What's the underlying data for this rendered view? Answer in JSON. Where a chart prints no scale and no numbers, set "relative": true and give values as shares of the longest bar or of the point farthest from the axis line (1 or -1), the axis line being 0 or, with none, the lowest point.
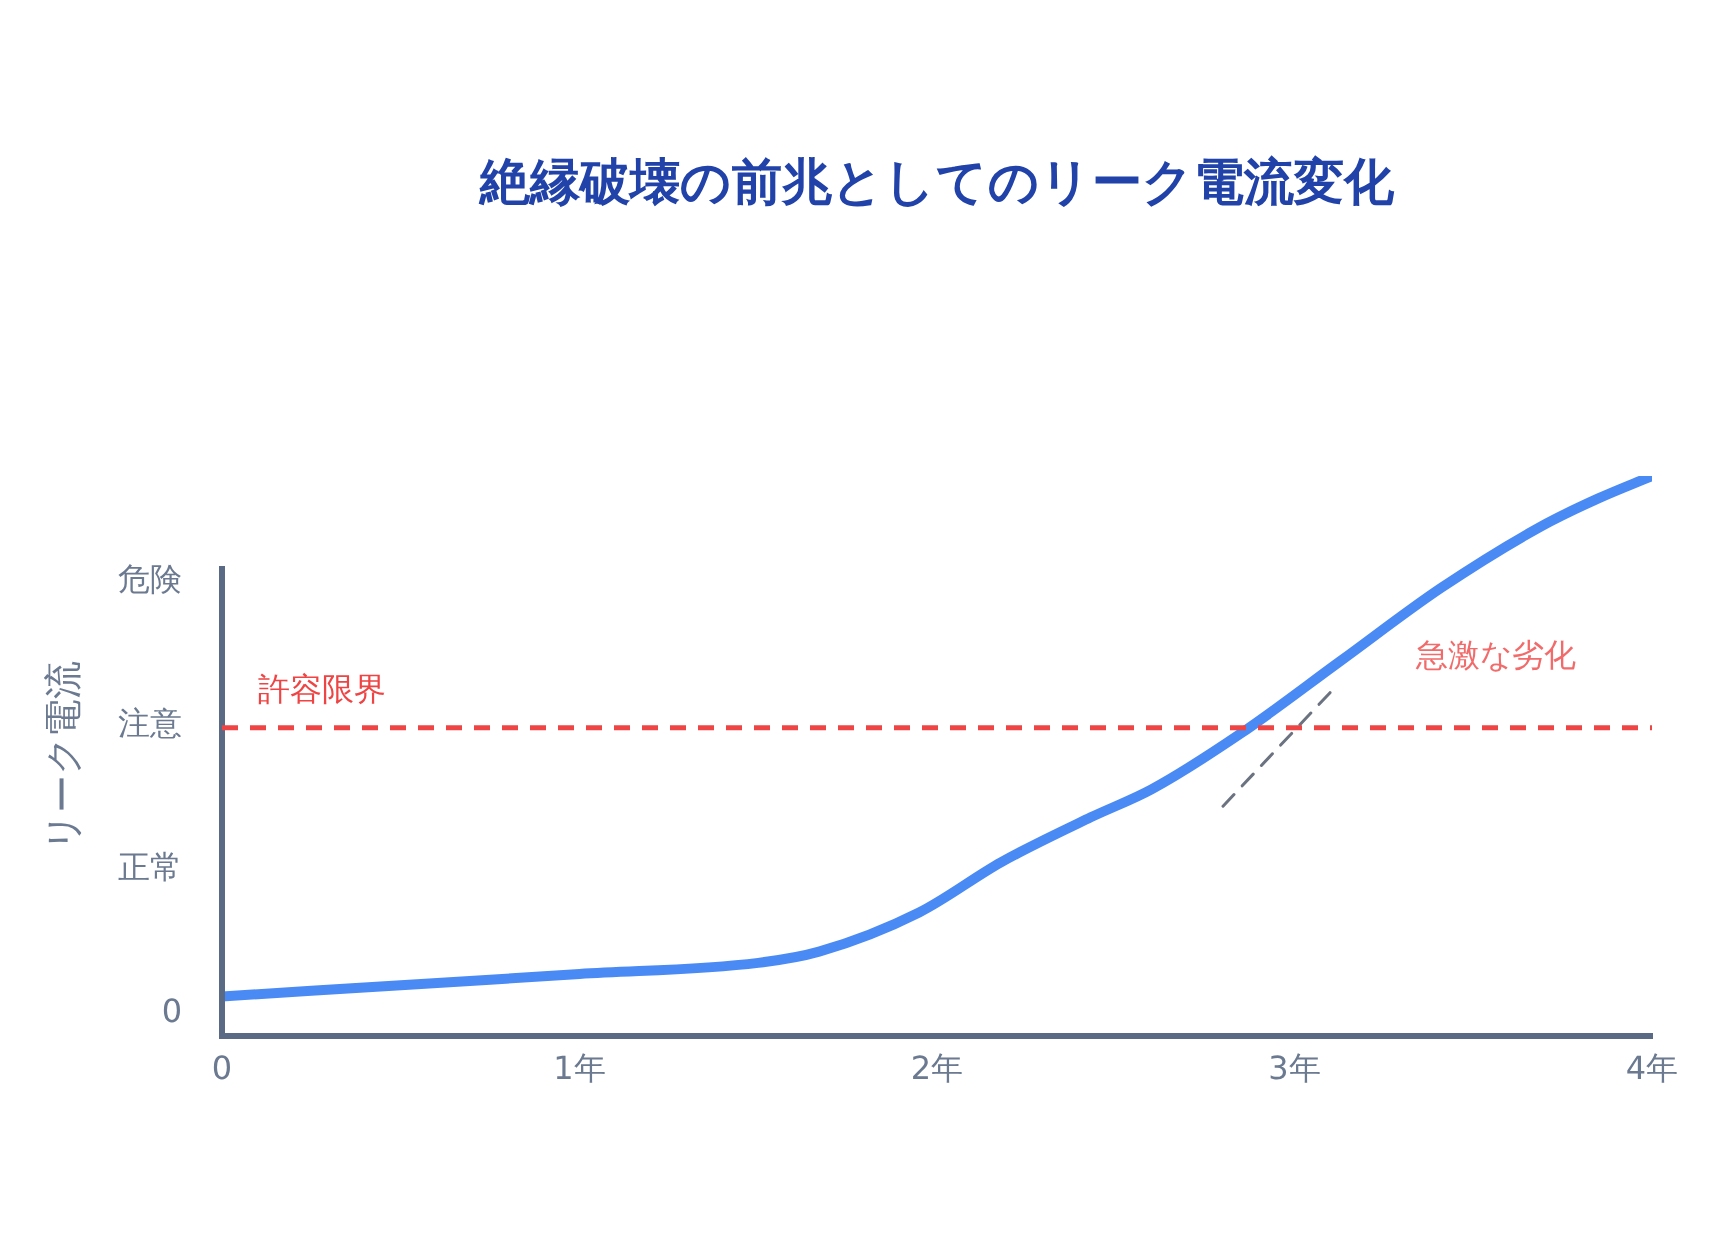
{
  "chart_data": {
    "type": "line",
    "title": "絶縁破壊の前兆としてのリーク電流変化",
    "ylabel": "リーク電流",
    "relative": true,
    "y_categories": [
      "危険",
      "注意",
      "正常",
      "0"
    ],
    "series": [
      {
        "color": "#4a8af4",
        "x": [
          0,
          0.5,
          1.0,
          1.5,
          1.67,
          1.95,
          2.18,
          2.43,
          2.6,
          2.85,
          3.13,
          3.41,
          3.69,
          3.85,
          4
        ],
        "values": [
          0.07,
          0.09,
          0.11,
          0.13,
          0.15,
          0.22,
          0.31,
          0.39,
          0.44,
          0.54,
          0.67,
          0.8,
          0.91,
          0.96,
          1
        ]
      },
      {
        "type": "line",
        "color": "#6b7280",
        "line_style": "dashed",
        "x": [
          2.8,
          3.11
        ],
        "values": [
          0.41,
          0.62
        ]
      }
    ],
    "xlim": [
      0,
      4
    ],
    "xticks": [
      0,
      {
        "value": 1,
        "label": "1年"
      },
      {
        "value": 2,
        "label": "2年"
      },
      {
        "value": 3,
        "label": "3年"
      },
      {
        "value": 4,
        "label": "4年"
      }
    ],
    "ref_lines": [
      {
        "axis": "y",
        "value": 0.55,
        "label": "許容限界",
        "color": "#ef4444",
        "line_style": "dashed"
      }
    ],
    "annotations": [
      "急激な劣化"
    ],
    "grid": false,
    "legend": false,
    "marker": "none",
    "line_style": "solid"
  }
}
